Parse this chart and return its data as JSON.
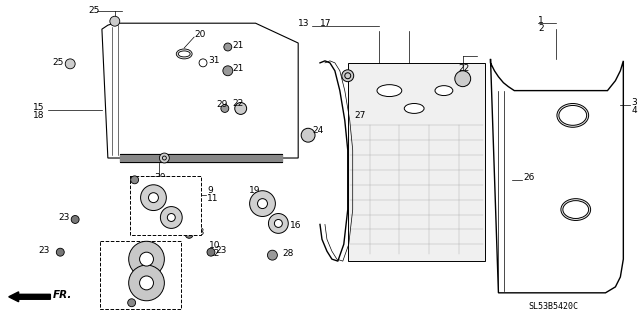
{
  "bg_color": "#ffffff",
  "line_color": "#000000",
  "diagram_code": "SL53B5420C",
  "figsize": [
    6.4,
    3.19
  ],
  "dpi": 100
}
